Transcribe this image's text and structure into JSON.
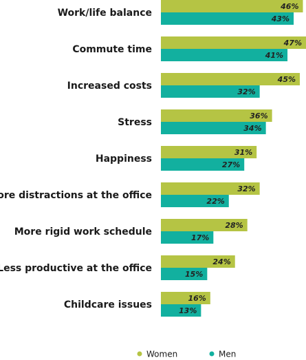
{
  "chart_data": {
    "type": "bar",
    "orientation": "horizontal",
    "categories": [
      "Work/life balance",
      "Commute time",
      "Increased costs",
      "Stress",
      "Happiness",
      "More distractions at the office",
      "More rigid work schedule",
      "Less productive at the office",
      "Childcare issues"
    ],
    "series": [
      {
        "name": "Women",
        "color": "#b5c444",
        "values": [
          46,
          47,
          45,
          36,
          31,
          32,
          28,
          24,
          16
        ],
        "labels": [
          "46%",
          "47%",
          "45%",
          "36%",
          "31%",
          "32%",
          "28%",
          "24%",
          "16%"
        ]
      },
      {
        "name": "Men",
        "color": "#12b09f",
        "values": [
          43,
          41,
          32,
          34,
          27,
          22,
          17,
          15,
          13
        ],
        "labels": [
          "43%",
          "41%",
          "32%",
          "34%",
          "27%",
          "22%",
          "17%",
          "15%",
          "13%"
        ]
      }
    ],
    "xlim": [
      0,
      47
    ],
    "grid": false,
    "legend_position": "bottom"
  }
}
